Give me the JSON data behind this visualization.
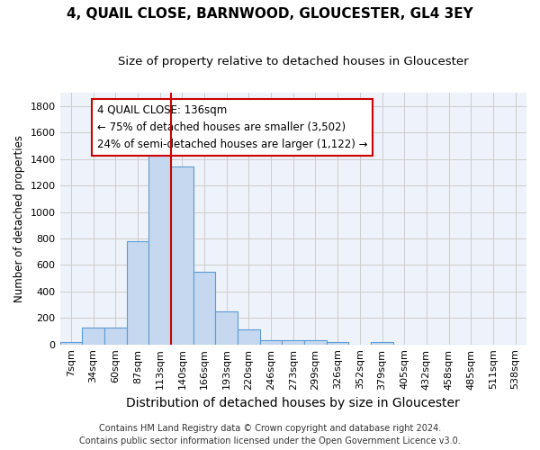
{
  "title1": "4, QUAIL CLOSE, BARNWOOD, GLOUCESTER, GL4 3EY",
  "title2": "Size of property relative to detached houses in Gloucester",
  "xlabel": "Distribution of detached houses by size in Gloucester",
  "ylabel": "Number of detached properties",
  "categories": [
    "7sqm",
    "34sqm",
    "60sqm",
    "87sqm",
    "113sqm",
    "140sqm",
    "166sqm",
    "193sqm",
    "220sqm",
    "246sqm",
    "273sqm",
    "299sqm",
    "326sqm",
    "352sqm",
    "379sqm",
    "405sqm",
    "432sqm",
    "458sqm",
    "485sqm",
    "511sqm",
    "538sqm"
  ],
  "values": [
    15,
    130,
    130,
    780,
    1430,
    1340,
    550,
    250,
    110,
    35,
    30,
    30,
    20,
    0,
    20,
    0,
    0,
    0,
    0,
    0,
    0
  ],
  "bar_color": "#c5d8f0",
  "bar_edge_color": "#5b9bd5",
  "vline_color": "#cc0000",
  "vline_x": 4.5,
  "annotation_text": "4 QUAIL CLOSE: 136sqm\n← 75% of detached houses are smaller (3,502)\n24% of semi-detached houses are larger (1,122) →",
  "annotation_box_color": "white",
  "annotation_box_edge_color": "#cc0000",
  "ylim": [
    0,
    1900
  ],
  "yticks": [
    0,
    200,
    400,
    600,
    800,
    1000,
    1200,
    1400,
    1600,
    1800
  ],
  "grid_color": "#cccccc",
  "background_color": "#eef2fa",
  "footer1": "Contains HM Land Registry data © Crown copyright and database right 2024.",
  "footer2": "Contains public sector information licensed under the Open Government Licence v3.0.",
  "title1_fontsize": 11,
  "title2_fontsize": 9.5,
  "xlabel_fontsize": 10,
  "ylabel_fontsize": 8.5,
  "tick_fontsize": 8,
  "annotation_fontsize": 8.5,
  "footer_fontsize": 7
}
